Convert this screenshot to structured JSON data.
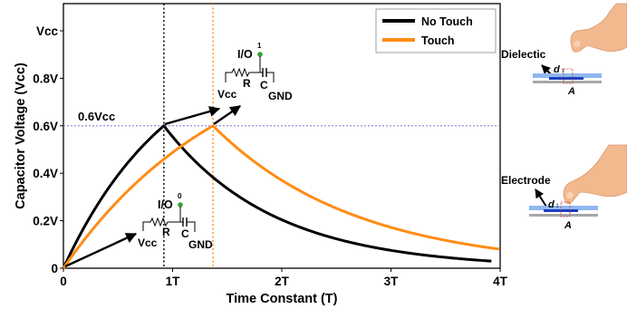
{
  "chart_data": {
    "type": "line",
    "xlabel": "Time Constant (T)",
    "ylabel": "Capacitor Voltage (Vcc)",
    "xlim": [
      0,
      4
    ],
    "ylim": [
      0,
      1.0
    ],
    "x_ticks": [
      0,
      1,
      2,
      3,
      4
    ],
    "x_tick_labels": [
      "0",
      "1T",
      "2T",
      "3T",
      "4T"
    ],
    "y_ticks": [
      0,
      0.2,
      0.4,
      0.6,
      0.8,
      1.0
    ],
    "y_tick_labels": [
      "0",
      "0.2V",
      "0.4V",
      "0.6V",
      "0.8V",
      "Vcc"
    ],
    "threshold": {
      "y": 0.6,
      "label": "0.6Vcc",
      "color": "#8a7fd6"
    },
    "legend_position": "top-right",
    "series": [
      {
        "name": "No Touch",
        "color": "#000000",
        "charge_tau": 1.0,
        "switch_x": 0.92,
        "x": [
          0,
          0.2,
          0.4,
          0.6,
          0.8,
          0.92,
          1.2,
          1.6,
          2.0,
          2.5,
          3.0,
          3.5,
          3.92
        ],
        "y": [
          0,
          0.18,
          0.33,
          0.45,
          0.55,
          0.6,
          0.45,
          0.3,
          0.2,
          0.12,
          0.07,
          0.04,
          0.03
        ]
      },
      {
        "name": "Touch",
        "color": "#ff8c14",
        "charge_tau": 1.5,
        "switch_x": 1.37,
        "x": [
          0,
          0.2,
          0.4,
          0.6,
          0.8,
          1.0,
          1.2,
          1.37,
          1.6,
          2.0,
          2.5,
          3.0,
          3.5,
          4.0
        ],
        "y": [
          0,
          0.13,
          0.24,
          0.33,
          0.41,
          0.49,
          0.55,
          0.6,
          0.51,
          0.39,
          0.27,
          0.18,
          0.12,
          0.08
        ]
      }
    ],
    "markers": [
      {
        "x": 0.92,
        "color": "#000000"
      },
      {
        "x": 1.37,
        "color": "#ff8c14"
      }
    ]
  },
  "circuit_charge": {
    "io": "I/O",
    "state": "0",
    "vcc": "Vcc",
    "r": "R",
    "c": "C",
    "gnd": "GND"
  },
  "circuit_discharge": {
    "io": "I/O",
    "state": "1",
    "vcc": "Vcc",
    "r": "R",
    "c": "C",
    "gnd": "GND"
  },
  "side": {
    "top_label": "Dielectic",
    "bottom_label": "Electrode",
    "d_label": "d",
    "a_label": "A"
  },
  "colors": {
    "layer_blue": "#8fb8f0",
    "electrode": "#1c3fbf",
    "base": "#a8a8a8",
    "io_dot": "#2ea32e"
  }
}
